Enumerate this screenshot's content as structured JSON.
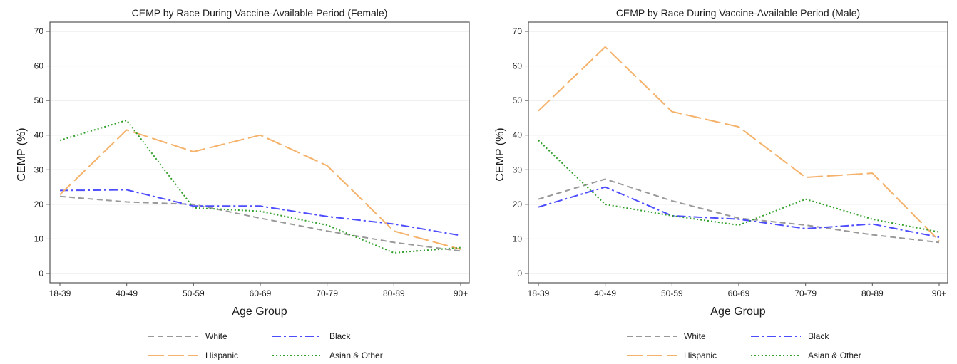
{
  "chart_data": [
    {
      "type": "line",
      "title": "CEMP by Race During Vaccine-Available Period (Female)",
      "xlabel": "Age Group",
      "ylabel": "CEMP (%)",
      "categories": [
        "18-39",
        "40-49",
        "50-59",
        "60-69",
        "70-79",
        "80-89",
        "90+"
      ],
      "ylim": [
        0,
        70
      ],
      "yticks": [
        0,
        10,
        20,
        30,
        40,
        50,
        60,
        70
      ],
      "grid": true,
      "legend_position": "bottom",
      "series": [
        {
          "name": "White",
          "color": "#999999",
          "dash": "8,5",
          "values": [
            22.3,
            20.7,
            20.0,
            16.0,
            12.3,
            9.0,
            6.5
          ]
        },
        {
          "name": "Black",
          "color": "#4d4dff",
          "dash": "12,4,3,4",
          "values": [
            24.0,
            24.2,
            19.5,
            19.5,
            16.5,
            14.3,
            11.0
          ]
        },
        {
          "name": "Hispanic",
          "color": "#f4b26a",
          "dash": "22,6",
          "values": [
            22.8,
            41.5,
            35.2,
            40.0,
            31.2,
            12.3,
            7.0
          ]
        },
        {
          "name": "Asian & Other",
          "color": "#33a02c",
          "dash": "2,3",
          "values": [
            38.5,
            44.3,
            19.0,
            18.0,
            14.0,
            6.0,
            7.5
          ]
        }
      ]
    },
    {
      "type": "line",
      "title": "CEMP by Race During Vaccine-Available Period (Male)",
      "xlabel": "Age Group",
      "ylabel": "CEMP (%)",
      "categories": [
        "18-39",
        "40-49",
        "50-59",
        "60-69",
        "70-79",
        "80-89",
        "90+"
      ],
      "ylim": [
        0,
        70
      ],
      "yticks": [
        0,
        10,
        20,
        30,
        40,
        50,
        60,
        70
      ],
      "grid": true,
      "legend_position": "bottom",
      "series": [
        {
          "name": "White",
          "color": "#999999",
          "dash": "8,5",
          "values": [
            21.5,
            27.3,
            21.0,
            16.0,
            14.0,
            11.2,
            9.0
          ]
        },
        {
          "name": "Black",
          "color": "#4d4dff",
          "dash": "12,4,3,4",
          "values": [
            19.2,
            25.0,
            16.7,
            15.7,
            13.0,
            14.3,
            10.5
          ]
        },
        {
          "name": "Hispanic",
          "color": "#f4b26a",
          "dash": "22,6",
          "values": [
            47.0,
            65.5,
            46.8,
            42.4,
            27.8,
            29.0,
            9.5
          ]
        },
        {
          "name": "Asian & Other",
          "color": "#33a02c",
          "dash": "2,3",
          "values": [
            38.5,
            20.0,
            16.7,
            14.0,
            21.5,
            15.7,
            12.0
          ]
        }
      ]
    }
  ]
}
